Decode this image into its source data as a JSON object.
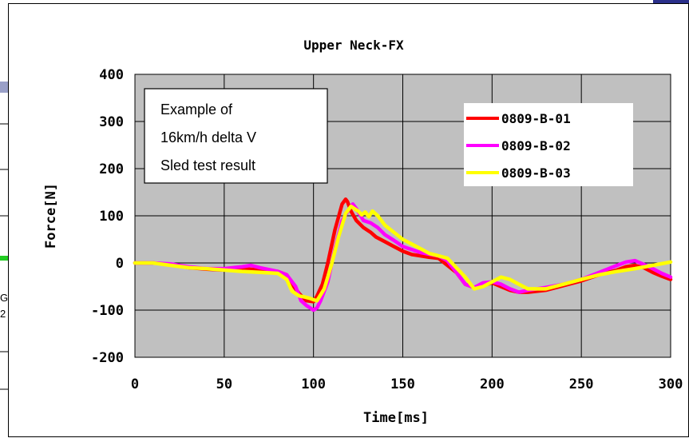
{
  "background": {
    "edge_fragment_top": "G",
    "edge_fragment_bottom": "2"
  },
  "chart_data": {
    "type": "line",
    "title": "Upper Neck-FX",
    "xlabel": "Time[ms]",
    "ylabel": "Force[N]",
    "xlim": [
      0,
      300
    ],
    "ylim": [
      -200,
      400
    ],
    "x_ticks": [
      "0",
      "50",
      "100",
      "150",
      "200",
      "250",
      "300"
    ],
    "y_ticks": [
      "400",
      "300",
      "200",
      "100",
      "0",
      "-100",
      "-200"
    ],
    "grid": true,
    "plot_background": "#c0c0c0",
    "legend_position": "top-right",
    "annotation": [
      "Example of",
      "16km/h delta V",
      "Sled test result"
    ],
    "series": [
      {
        "name": "0809-B-01",
        "color": "#ff0000",
        "x": [
          0,
          10,
          20,
          30,
          40,
          50,
          60,
          70,
          80,
          85,
          88,
          92,
          96,
          100,
          102,
          105,
          108,
          112,
          116,
          118,
          119,
          121,
          124,
          128,
          132,
          135,
          140,
          145,
          150,
          155,
          160,
          165,
          170,
          175,
          180,
          185,
          190,
          195,
          200,
          205,
          210,
          215,
          220,
          230,
          240,
          250,
          260,
          270,
          275,
          280,
          285,
          290,
          295,
          300
        ],
        "values": [
          0,
          0,
          -3,
          -10,
          -13,
          -15,
          -12,
          -15,
          -18,
          -25,
          -45,
          -65,
          -80,
          -82,
          -70,
          -45,
          0,
          70,
          125,
          135,
          130,
          110,
          90,
          75,
          65,
          55,
          45,
          35,
          25,
          18,
          15,
          12,
          10,
          -5,
          -20,
          -45,
          -52,
          -48,
          -42,
          -50,
          -58,
          -62,
          -62,
          -58,
          -48,
          -38,
          -25,
          -15,
          -8,
          -5,
          -10,
          -20,
          -28,
          -35
        ]
      },
      {
        "name": "0809-B-02",
        "color": "#ff00ff",
        "x": [
          0,
          10,
          20,
          30,
          40,
          50,
          60,
          65,
          70,
          80,
          85,
          90,
          93,
          96,
          100,
          102,
          104,
          108,
          112,
          116,
          120,
          122,
          124,
          128,
          132,
          136,
          140,
          145,
          150,
          160,
          170,
          175,
          180,
          185,
          190,
          195,
          200,
          205,
          210,
          215,
          220,
          230,
          240,
          250,
          260,
          270,
          275,
          280,
          285,
          290,
          295,
          300
        ],
        "values": [
          0,
          0,
          -2,
          -8,
          -12,
          -12,
          -8,
          -5,
          -10,
          -18,
          -25,
          -50,
          -80,
          -90,
          -100,
          -95,
          -80,
          -40,
          30,
          90,
          115,
          125,
          115,
          90,
          85,
          75,
          60,
          48,
          35,
          22,
          15,
          5,
          -20,
          -45,
          -52,
          -42,
          -40,
          -45,
          -55,
          -62,
          -58,
          -52,
          -45,
          -35,
          -20,
          -5,
          2,
          5,
          -3,
          -12,
          -22,
          -30
        ]
      },
      {
        "name": "0809-B-03",
        "color": "#ffff00",
        "x": [
          0,
          10,
          20,
          30,
          40,
          50,
          60,
          70,
          80,
          85,
          88,
          92,
          95,
          98,
          100,
          102,
          106,
          110,
          114,
          118,
          121,
          123,
          125,
          127,
          129,
          131,
          133,
          136,
          140,
          145,
          150,
          155,
          160,
          165,
          170,
          175,
          180,
          185,
          190,
          195,
          200,
          205,
          210,
          215,
          220,
          230,
          240,
          250,
          260,
          270,
          280,
          290,
          300
        ],
        "values": [
          0,
          0,
          -5,
          -10,
          -12,
          -15,
          -18,
          -20,
          -22,
          -35,
          -60,
          -70,
          -72,
          -75,
          -78,
          -80,
          -55,
          -5,
          55,
          105,
          120,
          115,
          110,
          102,
          108,
          98,
          110,
          100,
          80,
          65,
          50,
          40,
          30,
          20,
          15,
          10,
          -10,
          -30,
          -55,
          -50,
          -40,
          -30,
          -35,
          -45,
          -55,
          -55,
          -45,
          -35,
          -25,
          -18,
          -12,
          -5,
          2
        ]
      }
    ]
  }
}
